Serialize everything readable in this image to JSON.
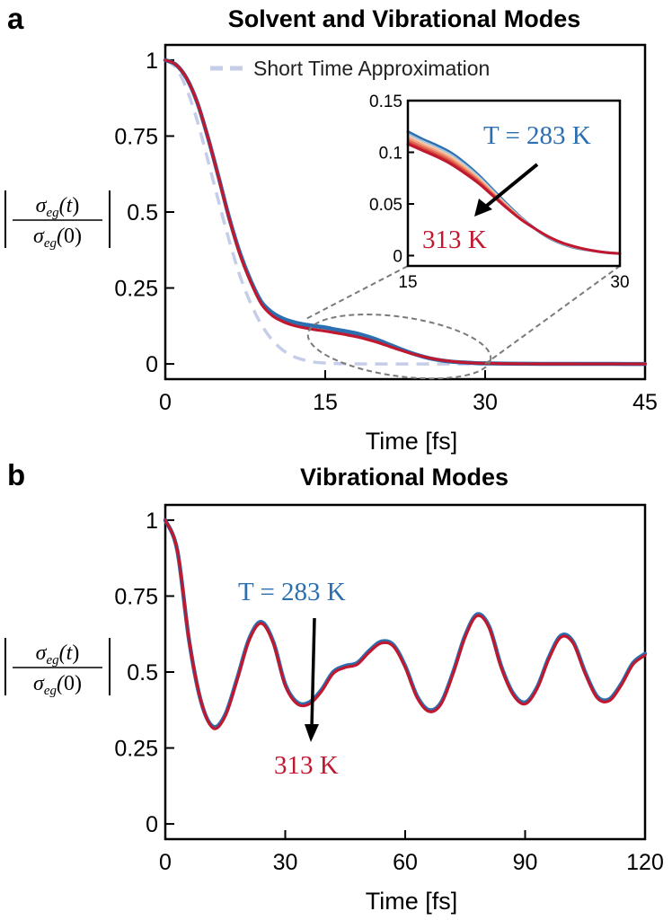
{
  "chart_data": [
    {
      "panel": "a",
      "type": "line",
      "title": "Solvent and Vibrational Modes",
      "xlabel": "Time [fs]",
      "ylabel": "|σ_eg(t)/σ_eg(0)|",
      "xlim": [
        0,
        45
      ],
      "ylim": [
        -0.05,
        1.05
      ],
      "xticks": [
        0,
        15,
        30,
        45
      ],
      "xtick_labels": [
        "0",
        "15",
        "30",
        "45"
      ],
      "yticks": [
        0,
        0.25,
        0.5,
        0.75,
        1
      ],
      "ytick_labels": [
        "0",
        "0.25",
        "0.5",
        "0.75",
        "1"
      ],
      "legend": {
        "position": "top",
        "entries": [
          "Short Time Approximation"
        ]
      },
      "series": [
        {
          "name": "T = 283 K",
          "color": "#2b6fb0",
          "x": [
            0,
            1,
            2,
            3,
            4,
            5,
            6,
            7,
            8,
            9,
            10,
            11,
            12,
            13,
            14,
            15,
            16,
            17,
            18,
            19,
            20,
            21,
            22,
            23,
            24,
            25,
            26,
            27,
            28,
            29,
            30,
            31,
            32,
            34,
            36,
            38,
            40,
            42,
            45
          ],
          "y": [
            1,
            0.985,
            0.94,
            0.86,
            0.745,
            0.615,
            0.48,
            0.365,
            0.275,
            0.205,
            0.17,
            0.15,
            0.138,
            0.13,
            0.125,
            0.12,
            0.113,
            0.107,
            0.1,
            0.09,
            0.078,
            0.064,
            0.05,
            0.037,
            0.026,
            0.017,
            0.011,
            0.007,
            0.005,
            0.003,
            0.002,
            0.0015,
            0.001,
            0.0005,
            0.0003,
            0.0002,
            0.0001,
            0.0001,
            0
          ]
        },
        {
          "name": "313 K",
          "color": "#c0182f",
          "x": [
            0,
            1,
            2,
            3,
            4,
            5,
            6,
            7,
            8,
            9,
            10,
            11,
            12,
            13,
            14,
            15,
            16,
            17,
            18,
            19,
            20,
            21,
            22,
            23,
            24,
            25,
            26,
            27,
            28,
            29,
            30,
            31,
            32,
            34,
            36,
            38,
            40,
            42,
            45
          ],
          "y": [
            1,
            0.985,
            0.94,
            0.86,
            0.745,
            0.613,
            0.477,
            0.36,
            0.27,
            0.198,
            0.16,
            0.14,
            0.127,
            0.119,
            0.113,
            0.108,
            0.102,
            0.096,
            0.089,
            0.08,
            0.07,
            0.058,
            0.046,
            0.035,
            0.026,
            0.018,
            0.012,
            0.008,
            0.005,
            0.003,
            0.002,
            0.0015,
            0.001,
            0.0005,
            0.0003,
            0.0002,
            0.0001,
            0.0001,
            0
          ]
        },
        {
          "name": "Short Time Approximation",
          "color": "#c5cde8",
          "style": "dashed",
          "x": [
            0,
            1,
            2,
            3,
            4,
            5,
            6,
            7,
            8,
            9,
            10,
            11,
            12,
            13,
            14,
            15,
            16,
            18,
            20,
            25,
            30,
            35,
            40,
            45
          ],
          "y": [
            1,
            0.975,
            0.905,
            0.8,
            0.67,
            0.535,
            0.405,
            0.29,
            0.2,
            0.13,
            0.08,
            0.046,
            0.025,
            0.013,
            0.006,
            0.003,
            0.0013,
            0.0002,
            0,
            0,
            0,
            0,
            0,
            0
          ]
        }
      ],
      "inset": {
        "xlim": [
          15,
          30
        ],
        "ylim": [
          -0.01,
          0.15
        ],
        "xticks": [
          15,
          30
        ],
        "xtick_labels": [
          "15",
          "30"
        ],
        "yticks": [
          0,
          0.05,
          0.1,
          0.15
        ],
        "ytick_labels": [
          "0",
          "0.05",
          "0.1",
          "0.15"
        ],
        "temperatures": [
          283,
          288,
          293,
          298,
          303,
          308,
          313
        ],
        "colors": [
          "#2b6fb0",
          "#9fc4df",
          "#f2c9ad",
          "#f2a07e",
          "#e46f55",
          "#d2423a",
          "#c0182f"
        ],
        "x": [
          15,
          16,
          17,
          18,
          19,
          20,
          21,
          22,
          23,
          24,
          25,
          26,
          27,
          28,
          29,
          30
        ],
        "y_283": [
          0.12,
          0.113,
          0.107,
          0.1,
          0.09,
          0.078,
          0.064,
          0.05,
          0.037,
          0.026,
          0.017,
          0.011,
          0.007,
          0.005,
          0.003,
          0.002
        ],
        "y_313": [
          0.108,
          0.102,
          0.096,
          0.089,
          0.08,
          0.07,
          0.058,
          0.046,
          0.035,
          0.026,
          0.018,
          0.012,
          0.008,
          0.005,
          0.003,
          0.002
        ],
        "annotations": {
          "top": "T = 283 K",
          "bottom": "313 K"
        }
      }
    },
    {
      "panel": "b",
      "type": "line",
      "title": "Vibrational Modes",
      "xlabel": "Time [fs]",
      "ylabel": "|σ_eg(t)/σ_eg(0)|",
      "xlim": [
        0,
        120
      ],
      "ylim": [
        -0.05,
        1.05
      ],
      "xticks": [
        0,
        30,
        60,
        90,
        120
      ],
      "xtick_labels": [
        "0",
        "30",
        "60",
        "90",
        "120"
      ],
      "yticks": [
        0,
        0.25,
        0.5,
        0.75,
        1
      ],
      "ytick_labels": [
        "0",
        "0.25",
        "0.5",
        "0.75",
        "1"
      ],
      "series": [
        {
          "name": "T = 283 K",
          "color": "#2b6fb0",
          "x": [
            0,
            3,
            6,
            9,
            12,
            15,
            18,
            21,
            24,
            27,
            30,
            33,
            36,
            39,
            42,
            45,
            48,
            51,
            54,
            57,
            60,
            63,
            66,
            69,
            72,
            75,
            78,
            81,
            84,
            87,
            90,
            93,
            96,
            99,
            102,
            105,
            108,
            111,
            114,
            117,
            120
          ],
          "y": [
            1,
            0.9,
            0.6,
            0.4,
            0.32,
            0.36,
            0.48,
            0.61,
            0.665,
            0.6,
            0.46,
            0.4,
            0.4,
            0.44,
            0.5,
            0.52,
            0.53,
            0.57,
            0.6,
            0.59,
            0.52,
            0.42,
            0.375,
            0.4,
            0.5,
            0.62,
            0.69,
            0.65,
            0.52,
            0.43,
            0.4,
            0.45,
            0.55,
            0.62,
            0.6,
            0.5,
            0.42,
            0.41,
            0.46,
            0.53,
            0.56
          ]
        },
        {
          "name": "313 K",
          "color": "#c0182f",
          "x": [
            0,
            3,
            6,
            9,
            12,
            15,
            18,
            21,
            24,
            27,
            30,
            33,
            36,
            39,
            42,
            45,
            48,
            51,
            54,
            57,
            60,
            63,
            66,
            69,
            72,
            75,
            78,
            81,
            84,
            87,
            90,
            93,
            96,
            99,
            102,
            105,
            108,
            111,
            114,
            117,
            120
          ],
          "y": [
            1,
            0.9,
            0.6,
            0.4,
            0.315,
            0.355,
            0.475,
            0.605,
            0.66,
            0.595,
            0.455,
            0.395,
            0.395,
            0.435,
            0.495,
            0.515,
            0.525,
            0.565,
            0.595,
            0.585,
            0.515,
            0.415,
            0.37,
            0.395,
            0.495,
            0.615,
            0.685,
            0.645,
            0.515,
            0.425,
            0.395,
            0.445,
            0.545,
            0.615,
            0.595,
            0.495,
            0.415,
            0.405,
            0.455,
            0.525,
            0.555
          ]
        }
      ],
      "annotations": {
        "top": "T = 283 K",
        "bottom": "313 K"
      }
    }
  ],
  "panel_labels": [
    "a",
    "b"
  ]
}
